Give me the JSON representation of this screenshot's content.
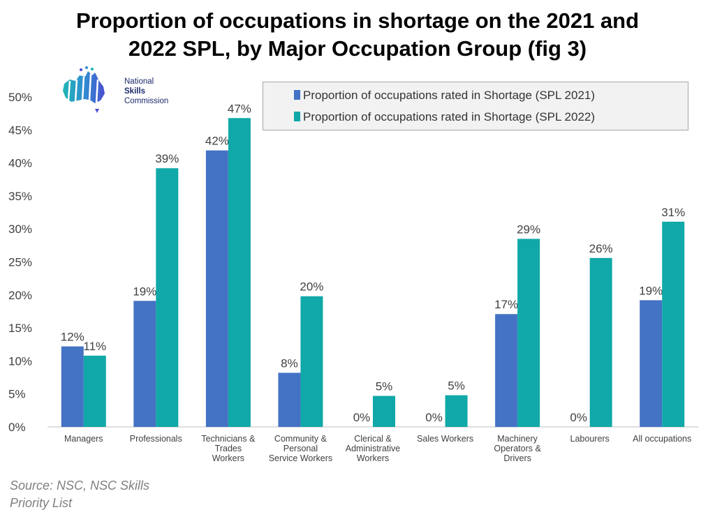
{
  "title_line1": "Proportion of occupations in shortage on the 2021 and",
  "title_line2": "2022 SPL, by Major Occupation Group (fig 3)",
  "logo": {
    "line1": "National",
    "line2": "Skills",
    "line3": "Commission"
  },
  "source_line1": "Source: NSC, NSC Skills",
  "source_line2": "Priority List",
  "colors": {
    "spl2021": "#4472c4",
    "spl2022": "#10a8a8",
    "axis": "#bfbfbf",
    "text": "#404040"
  },
  "chart_data": {
    "type": "bar",
    "title": "Proportion of occupations in shortage on the 2021 and 2022 SPL, by Major Occupation Group (fig 3)",
    "categories": [
      [
        "Managers"
      ],
      [
        "Professionals"
      ],
      [
        "Technicians &",
        "Trades",
        "Workers"
      ],
      [
        "Community &",
        "Personal",
        "Service Workers"
      ],
      [
        "Clerical &",
        "Administrative",
        "Workers"
      ],
      [
        "Sales Workers"
      ],
      [
        "Machinery",
        "Operators &",
        "Drivers"
      ],
      [
        "Labourers"
      ],
      [
        "All occupations"
      ]
    ],
    "series": [
      {
        "name": "Proportion of occupations rated in Shortage (SPL 2021)",
        "values": [
          12.2,
          19.1,
          41.9,
          8.2,
          0,
          0,
          17.1,
          0,
          19.2
        ],
        "labels": [
          "12%",
          "19%",
          "42%",
          "8%",
          "0%",
          "0%",
          "17%",
          "0%",
          "19%"
        ]
      },
      {
        "name": "Proportion of occupations rated in Shortage (SPL 2022)",
        "values": [
          10.8,
          39.2,
          46.8,
          19.8,
          4.7,
          4.8,
          28.5,
          25.6,
          31.1
        ],
        "labels": [
          "11%",
          "39%",
          "47%",
          "20%",
          "5%",
          "5%",
          "29%",
          "26%",
          "31%"
        ]
      }
    ],
    "ylim": [
      0,
      50
    ],
    "yticks": [
      "0%",
      "5%",
      "10%",
      "15%",
      "20%",
      "25%",
      "30%",
      "35%",
      "40%",
      "45%",
      "50%"
    ],
    "xlabel": "",
    "ylabel": "",
    "legend": "top-right"
  }
}
